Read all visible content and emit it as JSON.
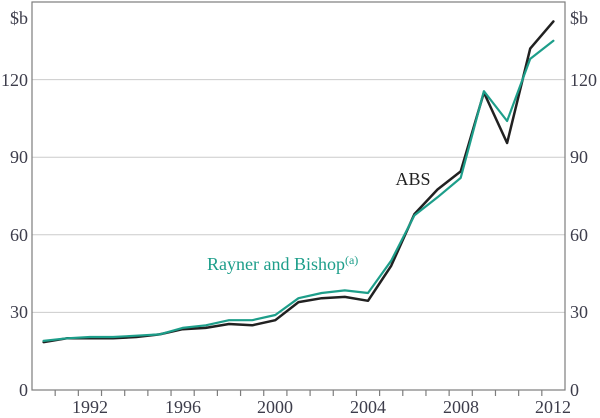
{
  "chart_data": {
    "type": "line",
    "title": "",
    "ylabel_left": "$b",
    "ylabel_right": "$b",
    "ylim": [
      0,
      150
    ],
    "yticks": [
      0,
      30,
      60,
      90,
      120
    ],
    "gridlines": [
      30,
      60,
      90,
      120
    ],
    "x_years": [
      1990,
      1991,
      1992,
      1993,
      1994,
      1995,
      1996,
      1997,
      1998,
      1999,
      2000,
      2001,
      2002,
      2003,
      2004,
      2005,
      2006,
      2007,
      2008,
      2009,
      2010,
      2011,
      2012
    ],
    "x_tick_labels": [
      "1992",
      "1996",
      "2000",
      "2004",
      "2008",
      "2012"
    ],
    "legend_position": "inline-annotations",
    "grid": "horizontal-only",
    "series": [
      {
        "name": "ABS",
        "color": "#212121",
        "values": [
          18.5,
          20,
          20,
          20,
          20.5,
          21.5,
          23.5,
          24,
          25.5,
          25,
          27,
          34,
          35.5,
          36,
          34.5,
          48,
          68,
          77.5,
          84.5,
          115,
          95.5,
          132,
          142.5
        ]
      },
      {
        "name": "Rayner and Bishop",
        "superscript": "(a)",
        "color": "#1d9e8a",
        "values": [
          19,
          20,
          20.5,
          20.5,
          21,
          21.5,
          24,
          25,
          27,
          27,
          29,
          35.5,
          37.5,
          38.5,
          37.5,
          50,
          67.5,
          74.5,
          82,
          115.5,
          104,
          128,
          135
        ]
      }
    ],
    "colors": {
      "grid": "#cccccc",
      "frame": "#7d7d7d",
      "tick_text": "#3d3d4b"
    }
  }
}
